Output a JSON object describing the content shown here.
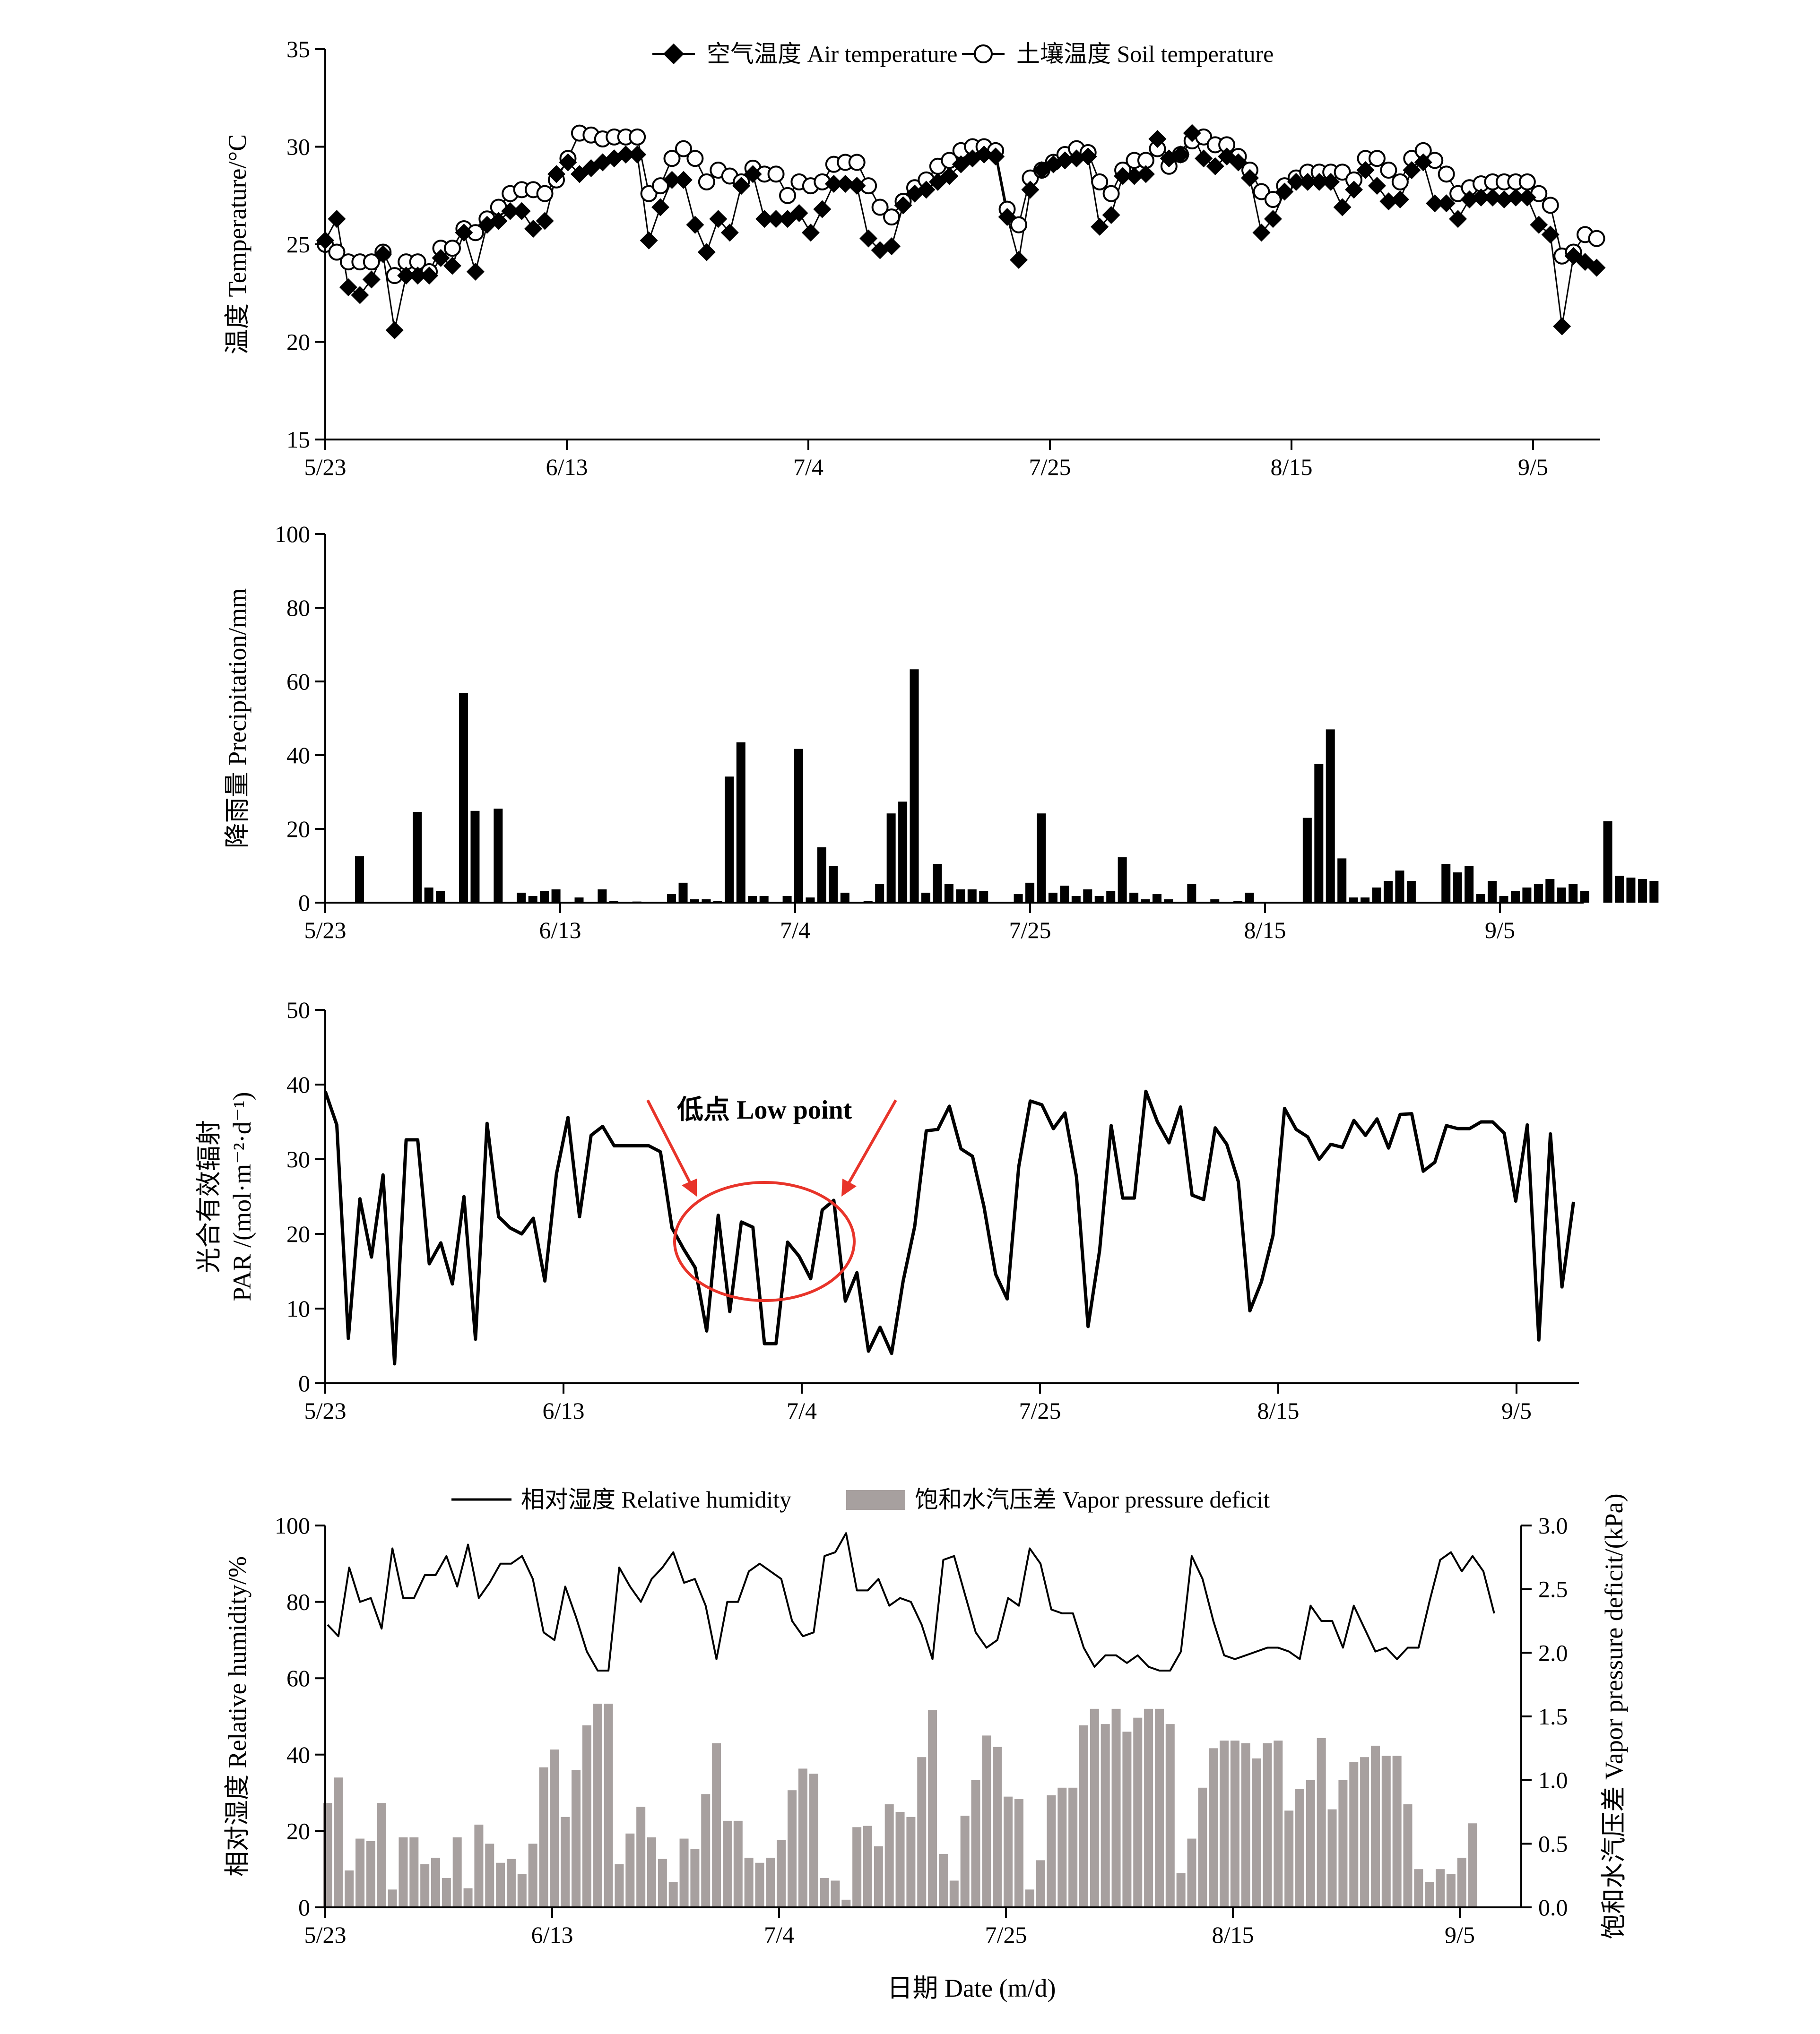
{
  "colors": {
    "air": "#000000",
    "soil_fill": "#ffffff",
    "precip_bar": "#000000",
    "par_line": "#000000",
    "rh_line": "#000000",
    "vpd_bar": "#a7a09f",
    "annotation": "#e8342a"
  },
  "x_axis": {
    "tick_labels": [
      "5/23",
      "6/13",
      "7/4",
      "7/25",
      "8/15",
      "9/5"
    ],
    "ylabel_bottom": "日期 Date (m/d)"
  },
  "chart_data": [
    {
      "id": "temperature",
      "type": "line",
      "ylabel": "温度 Temperature/°C",
      "ylim": [
        15,
        35
      ],
      "yticks": [
        15,
        20,
        25,
        30,
        35
      ],
      "legend_position": "top-center",
      "series": [
        {
          "name": "空气温度 Air temperature",
          "marker": "diamond",
          "values": [
            25.2,
            26.3,
            22.8,
            22.4,
            23.2,
            24.5,
            20.6,
            23.4,
            23.4,
            23.4,
            24.3,
            23.9,
            25.6,
            23.6,
            26.0,
            26.2,
            26.7,
            26.7,
            25.8,
            26.2,
            28.6,
            29.2,
            28.6,
            28.9,
            29.2,
            29.4,
            29.6,
            29.6,
            25.2,
            26.9,
            28.3,
            28.3,
            26.0,
            24.6,
            26.3,
            25.6,
            28.0,
            28.6,
            26.3,
            26.3,
            26.3,
            26.6,
            25.6,
            26.8,
            28.1,
            28.1,
            28.0,
            25.3,
            24.7,
            24.9,
            27.0,
            27.6,
            27.8,
            28.2,
            28.5,
            29.1,
            29.4,
            29.6,
            29.5,
            26.4,
            24.2,
            27.8,
            28.8,
            29.1,
            29.3,
            29.4,
            29.5,
            25.9,
            26.5,
            28.5,
            28.5,
            28.6,
            30.4,
            29.4,
            29.6,
            30.7,
            29.4,
            29.0,
            29.5,
            29.2,
            28.4,
            25.6,
            26.3,
            27.7,
            28.2,
            28.2,
            28.2,
            28.2,
            26.9,
            27.8,
            28.8,
            28.0,
            27.2,
            27.3,
            28.8,
            29.2,
            27.1,
            27.1,
            26.3,
            27.3,
            27.4,
            27.4,
            27.3,
            27.4,
            27.4,
            26.0,
            25.5,
            20.8,
            24.4,
            24.1,
            23.8
          ]
        },
        {
          "name": "土壤温度 Soil temperature",
          "marker": "circle",
          "values": [
            25.0,
            24.6,
            24.1,
            24.1,
            24.1,
            24.6,
            23.4,
            24.1,
            24.1,
            23.6,
            24.8,
            24.8,
            25.8,
            25.6,
            26.3,
            26.9,
            27.6,
            27.8,
            27.8,
            27.6,
            28.3,
            29.4,
            30.7,
            30.6,
            30.4,
            30.5,
            30.5,
            30.5,
            27.6,
            28.0,
            29.4,
            29.9,
            29.4,
            28.2,
            28.8,
            28.5,
            28.2,
            28.9,
            28.6,
            28.6,
            27.5,
            28.2,
            28.0,
            28.2,
            29.1,
            29.2,
            29.2,
            28.0,
            26.9,
            26.4,
            27.2,
            27.9,
            28.3,
            29.0,
            29.3,
            29.8,
            30.0,
            30.0,
            29.8,
            26.8,
            26.0,
            28.4,
            28.8,
            29.2,
            29.6,
            29.9,
            29.7,
            28.2,
            27.6,
            28.8,
            29.3,
            29.3,
            29.9,
            29.0,
            29.6,
            30.3,
            30.5,
            30.1,
            30.1,
            29.5,
            28.8,
            27.7,
            27.3,
            28.0,
            28.4,
            28.7,
            28.7,
            28.7,
            28.7,
            28.3,
            29.4,
            29.4,
            28.8,
            28.2,
            29.4,
            29.8,
            29.3,
            28.6,
            27.6,
            27.9,
            28.1,
            28.2,
            28.2,
            28.2,
            28.2,
            27.6,
            27.0,
            24.4,
            24.6,
            25.5,
            25.3
          ]
        }
      ]
    },
    {
      "id": "precipitation",
      "type": "bar",
      "ylabel": "降雨量 Precipitation/mm",
      "ylim": [
        0,
        100
      ],
      "yticks": [
        0,
        20,
        40,
        60,
        80,
        100
      ],
      "values": [
        0,
        12.6,
        0,
        0,
        0,
        0,
        24.6,
        4.1,
        3.2,
        0,
        56.9,
        24.9,
        0,
        25.5,
        0,
        2.7,
        1.8,
        3.2,
        3.6,
        0,
        1.4,
        0,
        3.6,
        0.5,
        0,
        0.3,
        0,
        0,
        2.3,
        5.4,
        0.9,
        0.9,
        0.5,
        34.2,
        43.5,
        1.8,
        1.8,
        0,
        1.8,
        41.7,
        1.4,
        15.0,
        10.0,
        2.7,
        0,
        0.5,
        5.0,
        24.2,
        27.4,
        63.3,
        2.7,
        10.5,
        5.0,
        3.6,
        3.6,
        3.2,
        0,
        0,
        2.3,
        5.4,
        24.2,
        2.7,
        4.6,
        1.8,
        3.6,
        1.8,
        3.2,
        12.3,
        2.7,
        0.9,
        2.3,
        0.9,
        0,
        5.0,
        0,
        0.9,
        0,
        0.5,
        2.7,
        0,
        0,
        0,
        0,
        23.0,
        37.6,
        47.0,
        12.0,
        1.4,
        1.4,
        4.1,
        5.9,
        8.7,
        5.9,
        0,
        0,
        10.5,
        8.2,
        10.0,
        2.3,
        5.9,
        1.8,
        3.2,
        4.1,
        5.0,
        6.4,
        4.1,
        5.0,
        3.2,
        0,
        22.1,
        7.3,
        6.8,
        6.4,
        5.9
      ]
    },
    {
      "id": "par",
      "type": "line",
      "ylabel": "光合有效辐射 PAR /(mol·m⁻²·d⁻¹)",
      "ylabel_line1": "光合有效辐射",
      "ylabel_line2": "PAR /(mol·m⁻²·d⁻¹)",
      "ylim": [
        0,
        50
      ],
      "yticks": [
        0,
        10,
        20,
        30,
        40,
        50
      ],
      "annotations": [
        {
          "text": "低点 Low point",
          "type": "circle-with-arrows"
        }
      ],
      "values": [
        39.1,
        34.6,
        6.0,
        24.7,
        16.9,
        27.9,
        2.6,
        32.6,
        32.6,
        16.0,
        18.8,
        13.3,
        25.0,
        5.9,
        34.8,
        22.3,
        20.8,
        20.0,
        22.1,
        13.7,
        28.0,
        35.6,
        22.3,
        33.2,
        34.4,
        31.8,
        31.8,
        31.8,
        31.8,
        31.0,
        20.8,
        18.0,
        15.5,
        7.0,
        22.5,
        9.6,
        21.6,
        20.9,
        5.3,
        5.3,
        18.9,
        17.0,
        14.0,
        23.2,
        24.5,
        11.0,
        14.8,
        4.3,
        7.5,
        4.0,
        13.7,
        21.0,
        33.8,
        34.0,
        37.1,
        31.4,
        30.4,
        23.6,
        14.6,
        11.3,
        29.0,
        37.8,
        37.3,
        34.1,
        36.2,
        27.6,
        7.6,
        17.8,
        34.5,
        24.8,
        24.8,
        39.1,
        35.0,
        32.2,
        37.0,
        25.2,
        24.6,
        34.2,
        32.0,
        27.0,
        9.7,
        13.6,
        19.8,
        36.8,
        34.0,
        33.0,
        30.0,
        32.0,
        31.6,
        35.2,
        33.2,
        35.4,
        31.5,
        36.0,
        36.1,
        28.4,
        29.6,
        34.5,
        34.1,
        34.1,
        35.0,
        35.0,
        33.5,
        24.4,
        34.6,
        5.8,
        33.4,
        12.9,
        24.3
      ]
    },
    {
      "id": "humidity_vpd",
      "type": "bar",
      "ylabel": "相对湿度 Relative humidity/%",
      "ylim": [
        0,
        100
      ],
      "yticks": [
        0,
        20,
        40,
        60,
        80,
        100
      ],
      "y2label": "饱和水汽压差 Vapor pressure deficit/(kPa)",
      "y2lim": [
        0,
        3.0
      ],
      "y2ticks": [
        "0.0",
        "0.5",
        "1.0",
        "1.5",
        "2.0",
        "2.5",
        "3.0"
      ],
      "legend_position": "top-center",
      "series": [
        {
          "name": "相对湿度 Relative humidity",
          "kind": "line",
          "axis": "left",
          "values": [
            74,
            71,
            89,
            80,
            81,
            73,
            94,
            81,
            81,
            87,
            87,
            92,
            84,
            95,
            81,
            85,
            90,
            90,
            92,
            86,
            72,
            70,
            84,
            76,
            67,
            62,
            62,
            89,
            84,
            80,
            86,
            89,
            93,
            85,
            86,
            79,
            65,
            80,
            80,
            88,
            90,
            88,
            86,
            75,
            71,
            72,
            92,
            93,
            98,
            83,
            83,
            86,
            79,
            81,
            80,
            74,
            65,
            91,
            92,
            82,
            72,
            68,
            70,
            81,
            79,
            94,
            90,
            78,
            77,
            77,
            68,
            63,
            66,
            66,
            64,
            66,
            63,
            62,
            62,
            67,
            92,
            86,
            75,
            66,
            65,
            66,
            67,
            68,
            68,
            67,
            65,
            79,
            75,
            75,
            68,
            79,
            73,
            67,
            68,
            65,
            68,
            68,
            80,
            91,
            93,
            88,
            92,
            88,
            77
          ]
        },
        {
          "name": "饱和水汽压差 Vapor pressure deficit",
          "kind": "bar",
          "axis": "right",
          "values": [
            0.82,
            1.02,
            0.29,
            0.54,
            0.52,
            0.82,
            0.14,
            0.55,
            0.55,
            0.34,
            0.39,
            0.23,
            0.55,
            0.15,
            0.65,
            0.5,
            0.35,
            0.38,
            0.26,
            0.5,
            1.1,
            1.24,
            0.71,
            1.08,
            1.43,
            1.6,
            1.6,
            0.34,
            0.58,
            0.79,
            0.55,
            0.38,
            0.2,
            0.54,
            0.46,
            0.89,
            1.29,
            0.68,
            0.68,
            0.39,
            0.35,
            0.39,
            0.53,
            0.92,
            1.09,
            1.05,
            0.23,
            0.21,
            0.06,
            0.63,
            0.64,
            0.48,
            0.81,
            0.75,
            0.71,
            1.18,
            1.55,
            0.42,
            0.21,
            0.72,
            1.0,
            1.35,
            1.26,
            0.87,
            0.85,
            0.14,
            0.37,
            0.88,
            0.94,
            0.94,
            1.43,
            1.56,
            1.44,
            1.56,
            1.38,
            1.49,
            1.56,
            1.56,
            1.44,
            0.27,
            0.54,
            0.94,
            1.25,
            1.31,
            1.31,
            1.29,
            1.17,
            1.29,
            1.31,
            0.76,
            0.93,
            1.0,
            1.33,
            0.77,
            1.0,
            1.14,
            1.18,
            1.27,
            1.19,
            1.19,
            0.81,
            0.3,
            0.2,
            0.3,
            0.26,
            0.39,
            0.66
          ]
        }
      ]
    }
  ]
}
